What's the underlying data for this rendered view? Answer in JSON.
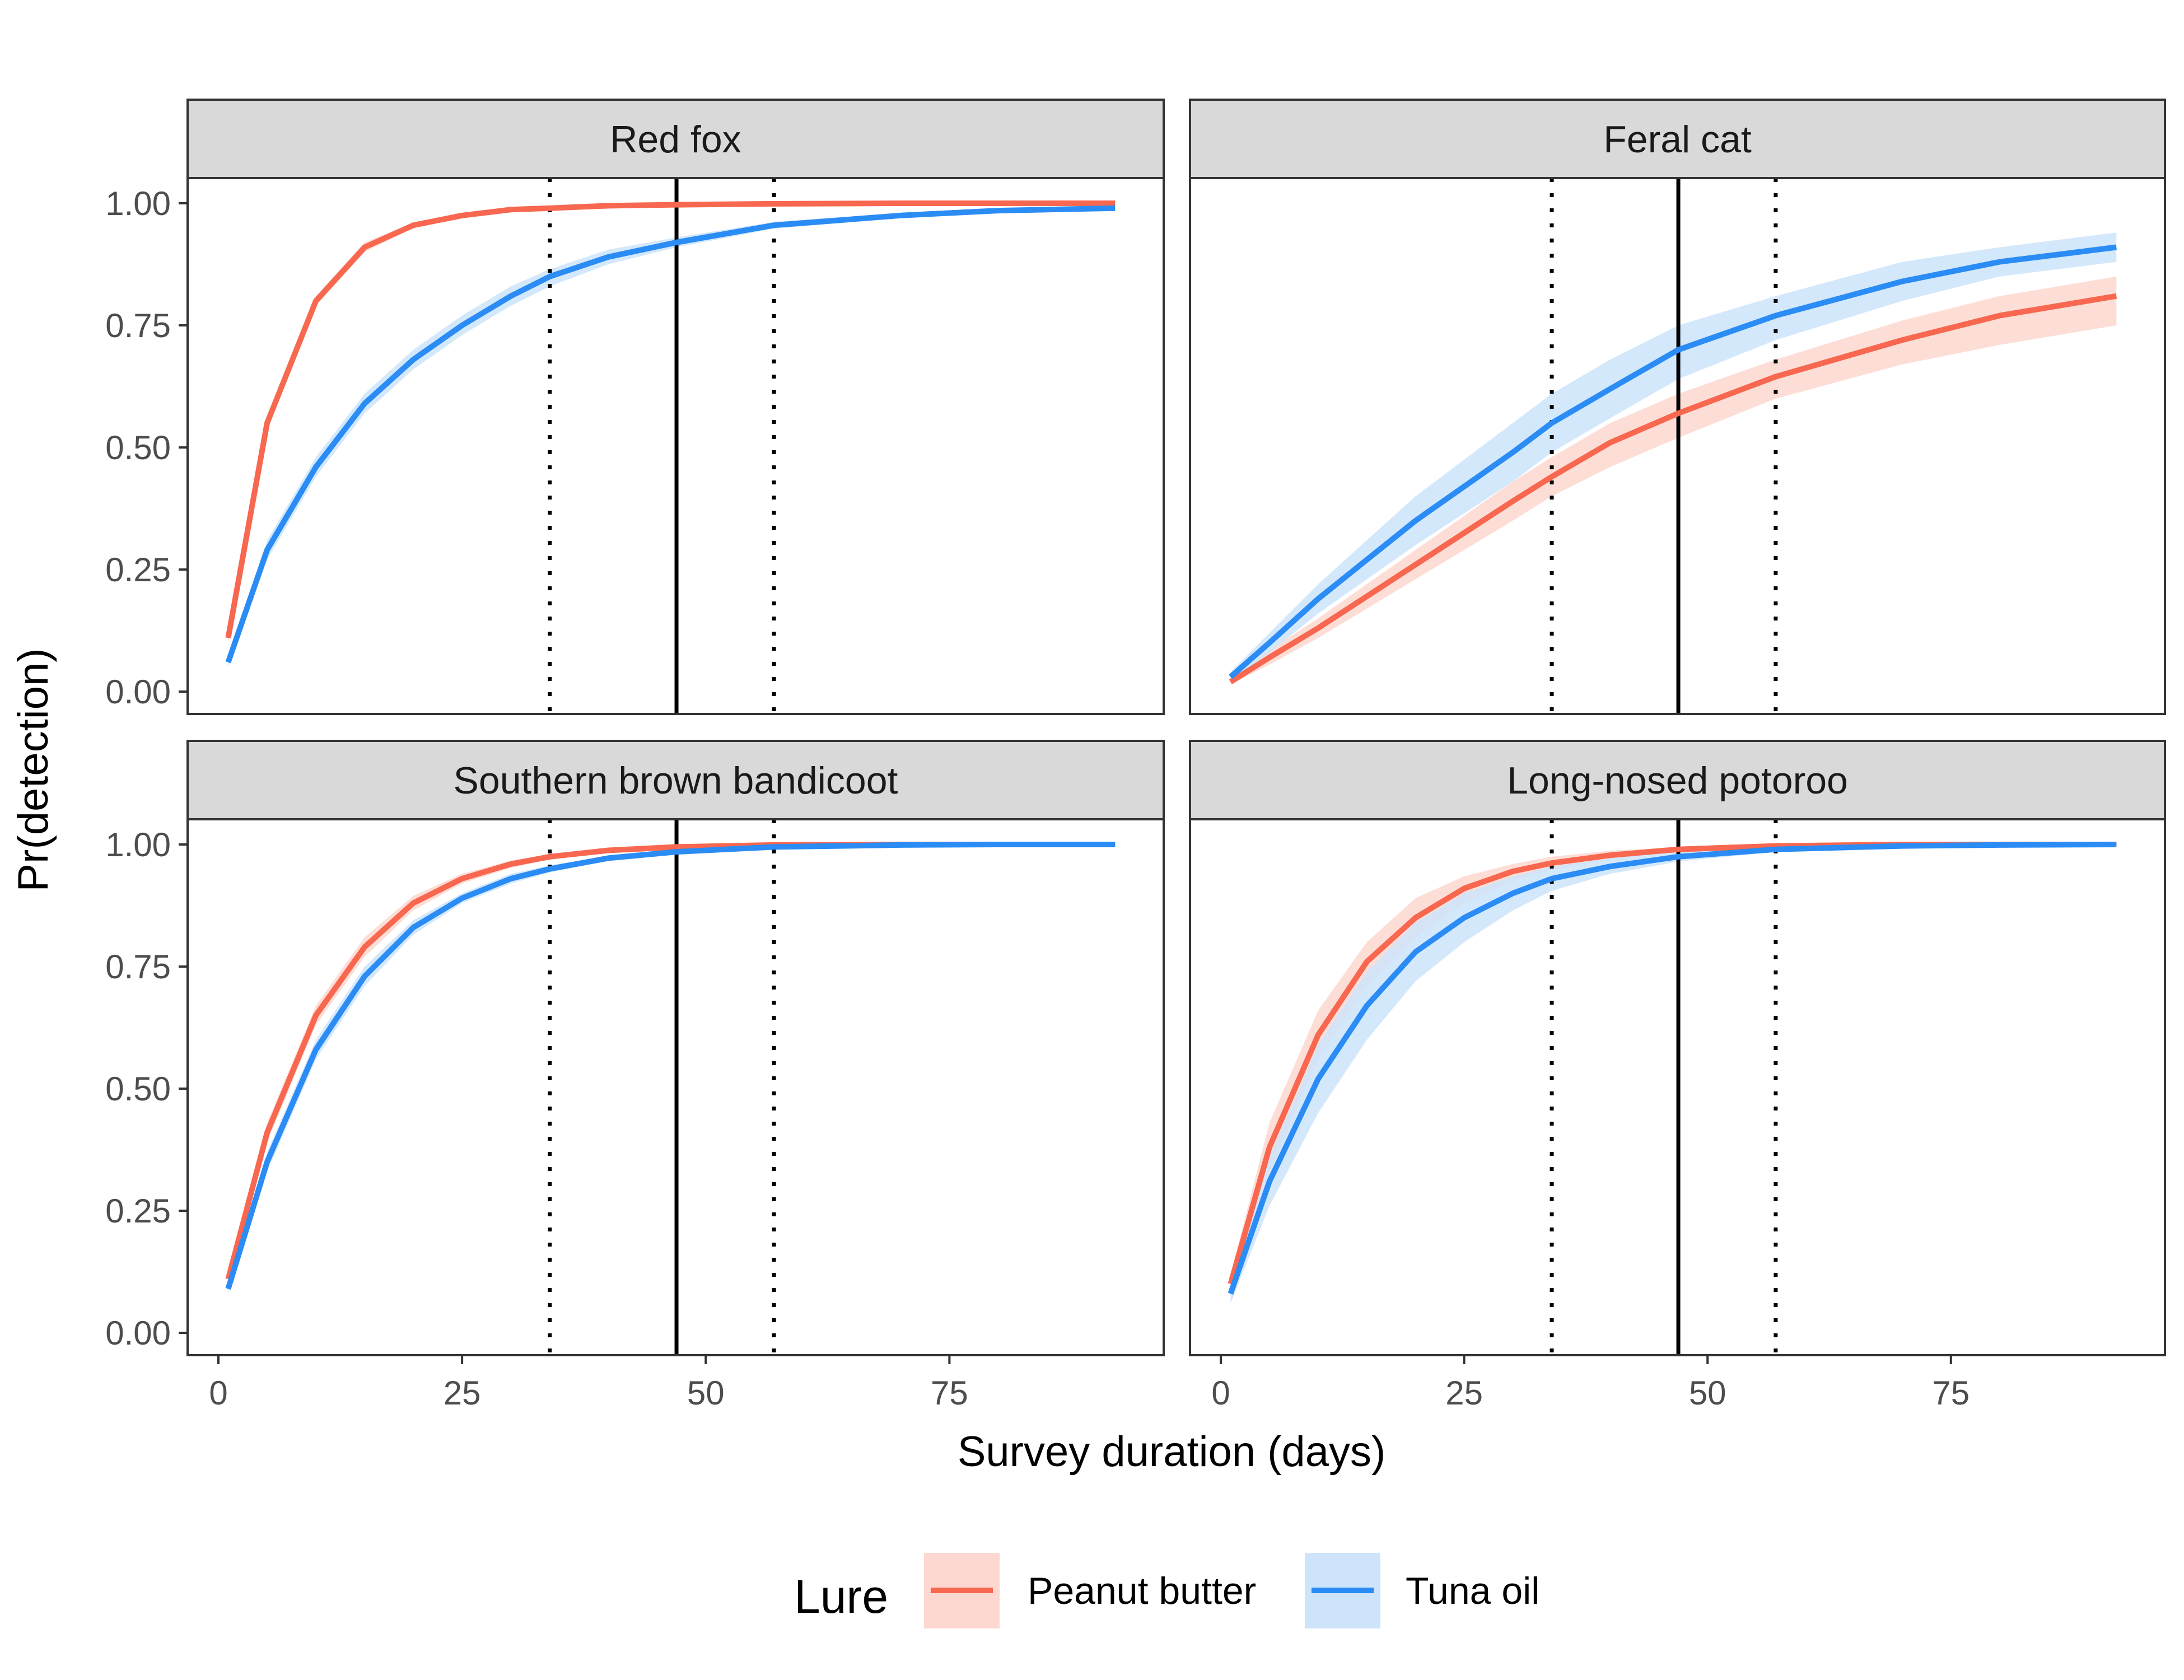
{
  "chart_data": {
    "type": "line",
    "xlabel": "Survey duration (days)",
    "ylabel": "Pr(detection)",
    "xlim": [
      0,
      92
    ],
    "ylim": [
      0,
      1
    ],
    "x_ticks": [
      0,
      25,
      50,
      75
    ],
    "x_tick_labels": [
      "0",
      "25",
      "50",
      "75"
    ],
    "y_ticks": [
      0,
      0.25,
      0.5,
      0.75,
      1
    ],
    "y_tick_labels": [
      "0.00",
      "0.25",
      "0.50",
      "0.75",
      "1.00"
    ],
    "grid": false,
    "reference_lines": [
      {
        "x": 34,
        "style": "dotted"
      },
      {
        "x": 47,
        "style": "solid"
      },
      {
        "x": 57,
        "style": "dotted"
      }
    ],
    "legend": {
      "title": "Lure",
      "position": "bottom",
      "entries": [
        {
          "label": "Peanut butter",
          "color": "#F8674F",
          "ribbon": "#FDD8D0"
        },
        {
          "label": "Tuna oil",
          "color": "#2A8CF4",
          "ribbon": "#CDE4FB"
        }
      ]
    },
    "panels": [
      {
        "title": "Red fox",
        "x": [
          1,
          5,
          10,
          15,
          20,
          25,
          30,
          34,
          40,
          47,
          57,
          70,
          80,
          92
        ],
        "series": [
          {
            "name": "Peanut butter",
            "values": [
              0.11,
              0.55,
              0.8,
              0.91,
              0.955,
              0.975,
              0.987,
              0.99,
              0.995,
              0.997,
              0.999,
              1.0,
              1.0,
              1.0
            ],
            "lower": [
              0.1,
              0.54,
              0.79,
              0.9,
              0.95,
              0.972,
              0.985,
              0.988,
              0.993,
              0.996,
              0.998,
              0.999,
              1.0,
              1.0
            ],
            "upper": [
              0.12,
              0.56,
              0.81,
              0.92,
              0.96,
              0.978,
              0.989,
              0.992,
              0.996,
              0.998,
              1.0,
              1.0,
              1.0,
              1.0
            ]
          },
          {
            "name": "Tuna oil",
            "values": [
              0.06,
              0.29,
              0.46,
              0.59,
              0.68,
              0.75,
              0.81,
              0.85,
              0.89,
              0.92,
              0.955,
              0.975,
              0.985,
              0.99
            ],
            "lower": [
              0.05,
              0.27,
              0.44,
              0.57,
              0.66,
              0.73,
              0.79,
              0.83,
              0.875,
              0.91,
              0.948,
              0.97,
              0.982,
              0.988
            ],
            "upper": [
              0.07,
              0.31,
              0.48,
              0.61,
              0.7,
              0.77,
              0.83,
              0.865,
              0.905,
              0.93,
              0.962,
              0.98,
              0.988,
              0.993
            ]
          }
        ]
      },
      {
        "title": "Feral cat",
        "x": [
          1,
          5,
          10,
          20,
          30,
          34,
          40,
          47,
          57,
          70,
          80,
          92
        ],
        "series": [
          {
            "name": "Peanut butter",
            "values": [
              0.02,
              0.07,
              0.13,
              0.26,
              0.39,
              0.44,
              0.51,
              0.57,
              0.645,
              0.72,
              0.77,
              0.81
            ],
            "lower": [
              0.015,
              0.055,
              0.11,
              0.23,
              0.35,
              0.4,
              0.46,
              0.52,
              0.6,
              0.67,
              0.71,
              0.75
            ],
            "upper": [
              0.025,
              0.085,
              0.15,
              0.29,
              0.43,
              0.48,
              0.55,
              0.61,
              0.68,
              0.76,
              0.81,
              0.85
            ]
          },
          {
            "name": "Tuna oil",
            "values": [
              0.03,
              0.1,
              0.19,
              0.35,
              0.49,
              0.55,
              0.62,
              0.7,
              0.77,
              0.84,
              0.88,
              0.91
            ],
            "lower": [
              0.02,
              0.08,
              0.16,
              0.3,
              0.43,
              0.49,
              0.56,
              0.64,
              0.72,
              0.8,
              0.85,
              0.88
            ],
            "upper": [
              0.04,
              0.12,
              0.22,
              0.4,
              0.55,
              0.61,
              0.68,
              0.75,
              0.81,
              0.88,
              0.91,
              0.94
            ]
          }
        ]
      },
      {
        "title": "Southern brown bandicoot",
        "x": [
          1,
          5,
          10,
          15,
          20,
          25,
          30,
          34,
          40,
          47,
          57,
          70,
          80,
          92
        ],
        "series": [
          {
            "name": "Peanut butter",
            "values": [
              0.11,
              0.41,
              0.65,
              0.79,
              0.88,
              0.93,
              0.96,
              0.975,
              0.988,
              0.995,
              0.999,
              1.0,
              1.0,
              1.0
            ],
            "lower": [
              0.1,
              0.39,
              0.63,
              0.77,
              0.865,
              0.92,
              0.952,
              0.97,
              0.984,
              0.993,
              0.998,
              1.0,
              1.0,
              1.0
            ],
            "upper": [
              0.12,
              0.43,
              0.67,
              0.81,
              0.895,
              0.94,
              0.967,
              0.98,
              0.991,
              0.997,
              1.0,
              1.0,
              1.0,
              1.0
            ]
          },
          {
            "name": "Tuna oil",
            "values": [
              0.09,
              0.35,
              0.58,
              0.73,
              0.83,
              0.89,
              0.93,
              0.95,
              0.972,
              0.985,
              0.995,
              0.999,
              1.0,
              1.0
            ],
            "lower": [
              0.08,
              0.33,
              0.56,
              0.71,
              0.815,
              0.88,
              0.92,
              0.943,
              0.967,
              0.982,
              0.993,
              0.998,
              1.0,
              1.0
            ],
            "upper": [
              0.1,
              0.37,
              0.6,
              0.75,
              0.845,
              0.9,
              0.94,
              0.957,
              0.977,
              0.988,
              0.997,
              1.0,
              1.0,
              1.0
            ]
          }
        ]
      },
      {
        "title": "Long-nosed potoroo",
        "x": [
          1,
          5,
          10,
          15,
          20,
          25,
          30,
          34,
          40,
          47,
          57,
          70,
          80,
          92
        ],
        "series": [
          {
            "name": "Peanut butter",
            "values": [
              0.1,
              0.38,
              0.61,
              0.76,
              0.85,
              0.91,
              0.945,
              0.962,
              0.978,
              0.99,
              0.997,
              1.0,
              1.0,
              1.0
            ],
            "lower": [
              0.08,
              0.33,
              0.56,
              0.71,
              0.81,
              0.88,
              0.925,
              0.948,
              0.97,
              0.985,
              0.995,
              0.999,
              1.0,
              1.0
            ],
            "upper": [
              0.12,
              0.43,
              0.66,
              0.8,
              0.89,
              0.935,
              0.96,
              0.975,
              0.987,
              0.995,
              0.999,
              1.0,
              1.0,
              1.0
            ]
          },
          {
            "name": "Tuna oil",
            "values": [
              0.08,
              0.31,
              0.52,
              0.67,
              0.78,
              0.85,
              0.9,
              0.93,
              0.955,
              0.975,
              0.99,
              0.997,
              0.999,
              1.0
            ],
            "lower": [
              0.06,
              0.26,
              0.45,
              0.6,
              0.72,
              0.8,
              0.865,
              0.905,
              0.94,
              0.965,
              0.985,
              0.995,
              0.998,
              1.0
            ],
            "upper": [
              0.1,
              0.36,
              0.59,
              0.74,
              0.84,
              0.9,
              0.935,
              0.955,
              0.972,
              0.985,
              0.995,
              0.999,
              1.0,
              1.0
            ]
          }
        ]
      }
    ]
  }
}
